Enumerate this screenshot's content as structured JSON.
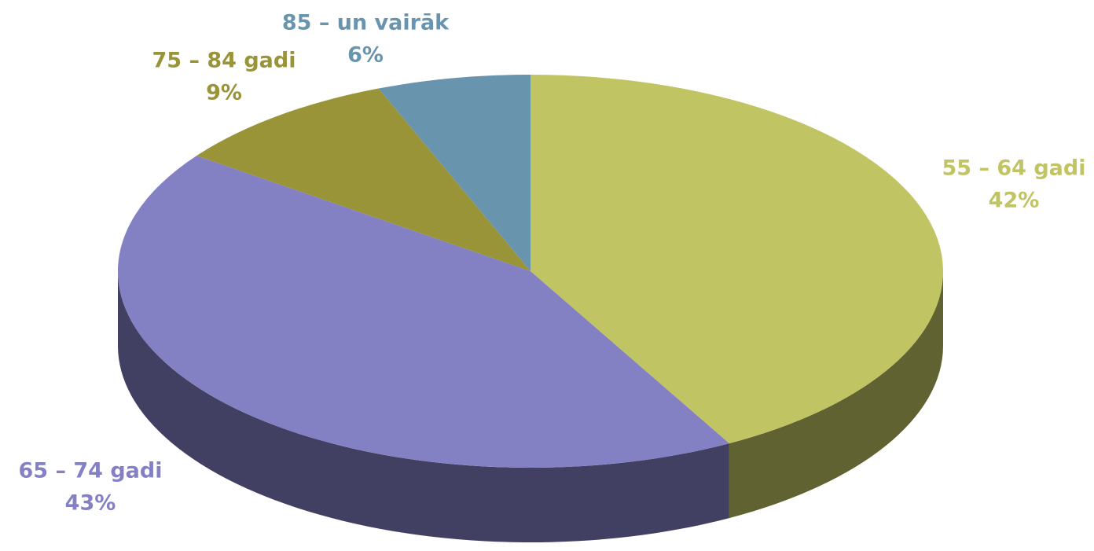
{
  "chart_data": {
    "type": "pie3d",
    "categories": [
      "55 – 64 gadi",
      "65 – 74 gadi",
      "75 – 84 gadi",
      "85 – un vairāk"
    ],
    "values": [
      42,
      43,
      9,
      6
    ],
    "value_labels": [
      "42%",
      "43%",
      "9%",
      "6%"
    ],
    "colors": [
      "#c0c462",
      "#8480c4",
      "#9a9438",
      "#6894ae"
    ]
  }
}
